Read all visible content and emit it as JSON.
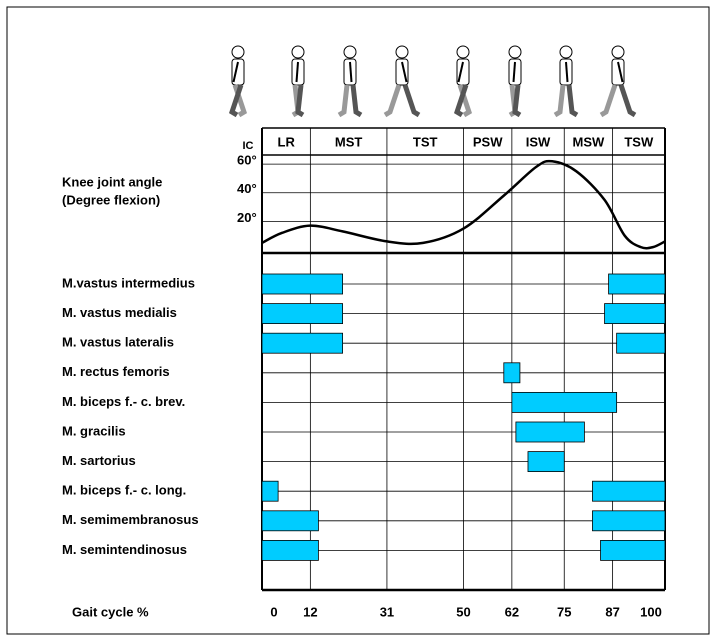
{
  "chart_data": {
    "type": "gait",
    "phases": [
      "IC",
      "LR",
      "MST",
      "TST",
      "PSW",
      "ISW",
      "MSW",
      "TSW"
    ],
    "xlim": [
      0,
      100
    ],
    "xticks": [
      0,
      12,
      31,
      50,
      62,
      75,
      87,
      100
    ],
    "x_label": "Gait cycle %",
    "knee": {
      "label": [
        "Knee joint angle",
        "(Degree flexion)"
      ],
      "x": [
        0,
        5,
        12,
        20,
        31,
        40,
        50,
        60,
        68,
        72,
        78,
        85,
        90,
        94,
        97,
        100
      ],
      "values": [
        5,
        12,
        17,
        13,
        6,
        5,
        15,
        38,
        58,
        62,
        55,
        35,
        10,
        2,
        2,
        6
      ],
      "ylim": [
        0,
        65
      ],
      "yticks": [
        {
          "value": 20,
          "label": "20°"
        },
        {
          "value": 40,
          "label": "40°"
        },
        {
          "value": 60,
          "label": "60°"
        }
      ],
      "color": "#000000"
    },
    "bar_color": "#00ccff",
    "muscles": [
      {
        "name": "M.vastus intermedius",
        "segments": [
          [
            0,
            20
          ],
          [
            86,
            100
          ]
        ]
      },
      {
        "name": "M. vastus medialis",
        "segments": [
          [
            0,
            20
          ],
          [
            85,
            100
          ]
        ]
      },
      {
        "name": "M. vastus lateralis",
        "segments": [
          [
            0,
            20
          ],
          [
            88,
            100
          ]
        ]
      },
      {
        "name": "M. rectus femoris",
        "segments": [
          [
            60,
            64
          ]
        ]
      },
      {
        "name": "M. biceps f.- c. brev.",
        "segments": [
          [
            62,
            88
          ]
        ]
      },
      {
        "name": "M. gracilis",
        "segments": [
          [
            63,
            80
          ]
        ]
      },
      {
        "name": "M. sartorius",
        "segments": [
          [
            66,
            75
          ]
        ]
      },
      {
        "name": "M. biceps f.- c. long.",
        "segments": [
          [
            0,
            4
          ],
          [
            82,
            100
          ]
        ]
      },
      {
        "name": "M. semimembranosus",
        "segments": [
          [
            0,
            14
          ],
          [
            82,
            100
          ]
        ]
      },
      {
        "name": "M. semintendinosus",
        "segments": [
          [
            0,
            14
          ],
          [
            84,
            100
          ]
        ]
      }
    ]
  }
}
